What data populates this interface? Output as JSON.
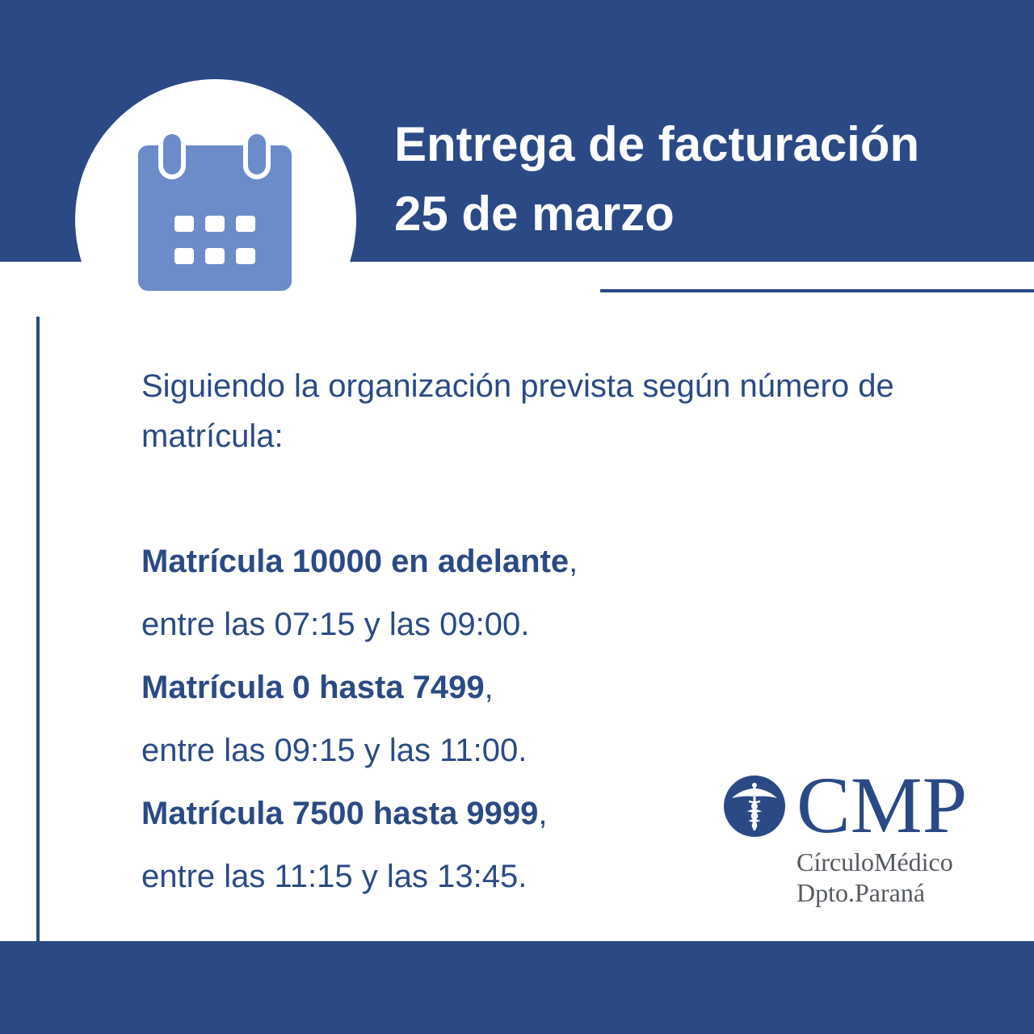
{
  "header": {
    "title_line1": "Entrega de facturación",
    "title_line2": "25 de marzo"
  },
  "intro": "Siguiendo la organización prevista según número de matrícula:",
  "schedule": [
    {
      "label": "Matrícula 10000 en adelante",
      "suffix": ",",
      "time": "entre las 07:15 y las 09:00."
    },
    {
      "label": "Matrícula 0 hasta 7499",
      "suffix": ",",
      "time": "entre las 09:15 y las 11:00."
    },
    {
      "label": "Matrícula 7500 hasta 9999",
      "suffix": ",",
      "time": "entre las 11:15 y las 13:45."
    }
  ],
  "logo": {
    "letters": "CMP",
    "line1": "CírculoMédico",
    "line2": "Dpto.Paraná"
  },
  "icons": {
    "calendar": "calendar-icon",
    "caduceus": "caduceus-icon"
  },
  "colors": {
    "primary": "#2b4a85",
    "icon": "#6b8cc9",
    "logo_text": "#555a60"
  }
}
